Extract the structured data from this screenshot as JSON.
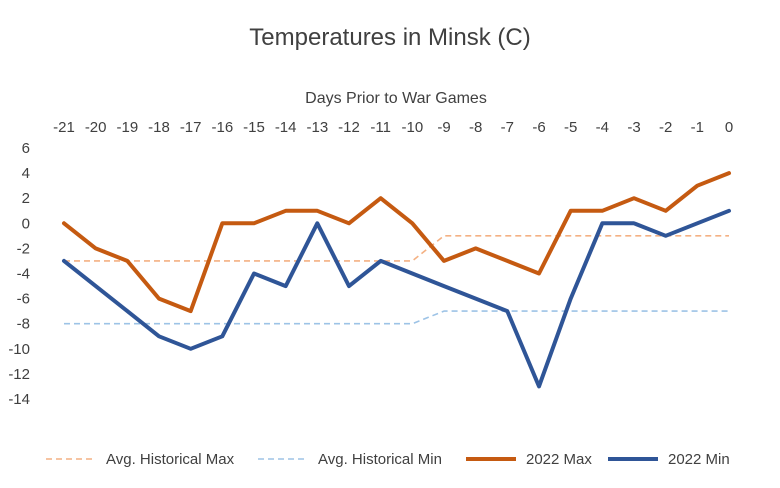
{
  "chart_data": {
    "type": "line",
    "title": "Temperatures in Minsk (C)",
    "xlabel": "Days Prior to War Games",
    "ylabel": "",
    "x": [
      -21,
      -20,
      -19,
      -18,
      -17,
      -16,
      -15,
      -14,
      -13,
      -12,
      -11,
      -10,
      -9,
      -8,
      -7,
      -6,
      -5,
      -4,
      -3,
      -2,
      -1,
      0
    ],
    "x_axis_position": "top",
    "ylim": [
      -14,
      6
    ],
    "yticks": [
      6,
      4,
      2,
      0,
      -2,
      -4,
      -6,
      -8,
      -10,
      -12,
      -14
    ],
    "grid": false,
    "legend_position": "bottom",
    "series": [
      {
        "name": "Avg. Historical Max",
        "color": "#F4B183",
        "style": "dashed",
        "values": [
          -3,
          -3,
          -3,
          -3,
          -3,
          -3,
          -3,
          -3,
          -3,
          -3,
          -3,
          -3,
          -1,
          -1,
          -1,
          -1,
          -1,
          -1,
          -1,
          -1,
          -1,
          -1
        ]
      },
      {
        "name": "Avg. Historical Min",
        "color": "#9DC3E6",
        "style": "dashed",
        "values": [
          -8,
          -8,
          -8,
          -8,
          -8,
          -8,
          -8,
          -8,
          -8,
          -8,
          -8,
          -8,
          -7,
          -7,
          -7,
          -7,
          -7,
          -7,
          -7,
          -7,
          -7,
          -7
        ]
      },
      {
        "name": "2022 Max",
        "color": "#C55A11",
        "style": "solid",
        "values": [
          0,
          -2,
          -3,
          -6,
          -7,
          0,
          0,
          1,
          1,
          0,
          2,
          0,
          -3,
          -2,
          -3,
          -4,
          1,
          1,
          2,
          1,
          3,
          4
        ]
      },
      {
        "name": "2022 Min",
        "color": "#2F5597",
        "style": "solid",
        "values": [
          -3,
          -5,
          -7,
          -9,
          -10,
          -9,
          -4,
          -5,
          0,
          -5,
          -3,
          -4,
          -5,
          -6,
          -7,
          -13,
          -6,
          0,
          0,
          -1,
          0,
          1
        ]
      }
    ]
  }
}
